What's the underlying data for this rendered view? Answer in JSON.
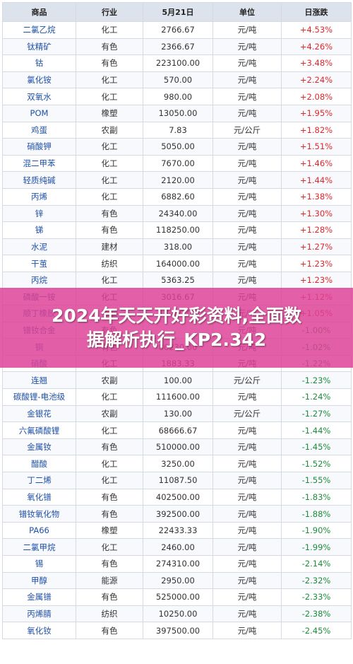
{
  "table": {
    "headers": [
      "商品",
      "行业",
      "5月21日",
      "单位",
      "日涨跌"
    ],
    "rows": [
      [
        "二氯乙烷",
        "化工",
        "2766.67",
        "元/吨",
        "+4.53%"
      ],
      [
        "钛精矿",
        "有色",
        "2366.67",
        "元/吨",
        "+4.26%"
      ],
      [
        "钴",
        "有色",
        "223100.00",
        "元/吨",
        "+3.48%"
      ],
      [
        "氯化铵",
        "化工",
        "570.00",
        "元/吨",
        "+2.24%"
      ],
      [
        "双氧水",
        "化工",
        "980.00",
        "元/吨",
        "+2.08%"
      ],
      [
        "POM",
        "橡塑",
        "13050.00",
        "元/吨",
        "+1.95%"
      ],
      [
        "鸡蛋",
        "农副",
        "7.83",
        "元/公斤",
        "+1.82%"
      ],
      [
        "硝酸钾",
        "化工",
        "5050.00",
        "元/吨",
        "+1.51%"
      ],
      [
        "混二甲苯",
        "化工",
        "7670.00",
        "元/吨",
        "+1.46%"
      ],
      [
        "轻质纯碱",
        "化工",
        "2120.00",
        "元/吨",
        "+1.44%"
      ],
      [
        "丙烯",
        "化工",
        "6882.60",
        "元/吨",
        "+1.38%"
      ],
      [
        "锌",
        "有色",
        "24340.00",
        "元/吨",
        "+1.30%"
      ],
      [
        "锑",
        "有色",
        "118250.00",
        "元/吨",
        "+1.28%"
      ],
      [
        "水泥",
        "建材",
        "318.00",
        "元/吨",
        "+1.27%"
      ],
      [
        "干茧",
        "纺织",
        "164000.00",
        "元/吨",
        "+1.23%"
      ],
      [
        "丙烷",
        "化工",
        "5363.25",
        "元/吨",
        "+1.23%"
      ],
      [
        "磷酸一铵",
        "化工",
        "3016.67",
        "元/吨",
        "+1.12%"
      ],
      [
        "顺丁橡胶",
        "橡塑",
        "13480.00",
        "元/吨",
        "+1.05%"
      ],
      [
        "镨钕合金",
        "有色",
        "",
        "元/吨",
        "-1.00%"
      ],
      [
        "铜",
        "有色",
        "86230.00",
        "元/吨",
        "-1.02%"
      ],
      [
        "硝酸",
        "化工",
        "1883.33",
        "元/吨",
        "-1.22%"
      ],
      [
        "连翘",
        "农副",
        "100.00",
        "元/公斤",
        "-1.23%"
      ],
      [
        "碳酸锂-电池级",
        "化工",
        "111600.00",
        "元/吨",
        "-1.24%"
      ],
      [
        "金银花",
        "农副",
        "130.00",
        "元/公斤",
        "-1.27%"
      ],
      [
        "六氟磷酸锂",
        "化工",
        "68666.67",
        "元/吨",
        "-1.44%"
      ],
      [
        "金属钕",
        "有色",
        "510000.00",
        "元/吨",
        "-1.45%"
      ],
      [
        "醋酸",
        "化工",
        "3250.00",
        "元/吨",
        "-1.52%"
      ],
      [
        "丁二烯",
        "化工",
        "11087.50",
        "元/吨",
        "-1.55%"
      ],
      [
        "氧化镨",
        "有色",
        "402500.00",
        "元/吨",
        "-1.83%"
      ],
      [
        "镨钕氧化物",
        "有色",
        "392500.00",
        "元/吨",
        "-1.88%"
      ],
      [
        "PA66",
        "橡塑",
        "22433.33",
        "元/吨",
        "-1.90%"
      ],
      [
        "二氯甲烷",
        "化工",
        "2460.00",
        "元/吨",
        "-1.99%"
      ],
      [
        "锡",
        "有色",
        "274310.00",
        "元/吨",
        "-2.14%"
      ],
      [
        "甲醇",
        "能源",
        "2950.00",
        "元/吨",
        "-2.32%"
      ],
      [
        "金属镨",
        "有色",
        "525000.00",
        "元/吨",
        "-2.33%"
      ],
      [
        "丙烯腈",
        "纺织",
        "10250.00",
        "元/吨",
        "-2.38%"
      ],
      [
        "氧化钕",
        "有色",
        "397500.00",
        "元/吨",
        "-2.45%"
      ]
    ]
  },
  "banner": {
    "line1": "2024年天天开好彩资料,全面数",
    "line2": "据解析执行_KP2.342"
  },
  "colors": {
    "up": "#e0262b",
    "down": "#1c8d3a",
    "name": "#1f50a8",
    "header_bg": "#dde3ec",
    "banner_bg": "#de4096"
  }
}
